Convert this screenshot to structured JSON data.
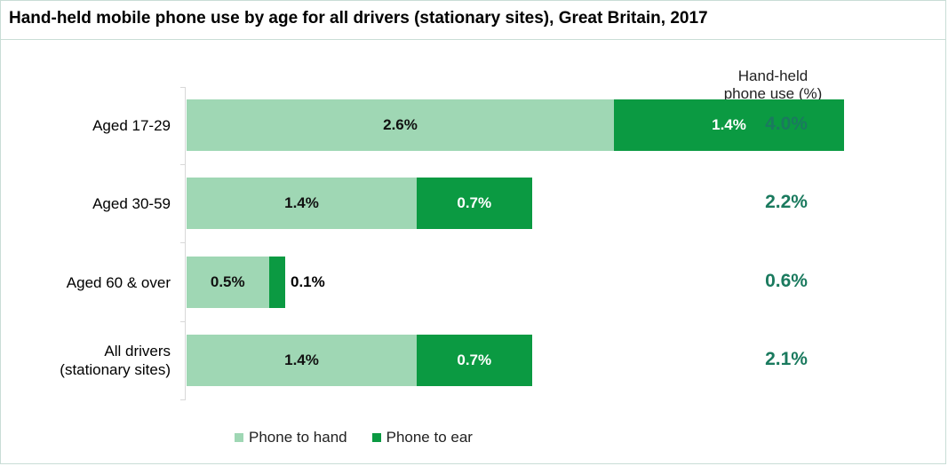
{
  "chart_data": {
    "type": "bar",
    "orientation": "horizontal",
    "stacked": true,
    "title": "Hand-held mobile phone use by age for all drivers (stationary sites), Great Britain, 2017",
    "categories": [
      "Aged 17-29",
      "Aged 30-59",
      "Aged 60 & over",
      "All drivers (stationary sites)"
    ],
    "category_lines": [
      [
        "Aged 17-29"
      ],
      [
        "Aged 30-59"
      ],
      [
        "Aged 60 & over"
      ],
      [
        "All drivers",
        "(stationary sites)"
      ]
    ],
    "series": [
      {
        "name": "Phone to hand",
        "values": [
          2.6,
          1.4,
          0.5,
          1.4
        ],
        "labels": [
          "2.6%",
          "1.4%",
          "0.5%",
          "1.4%"
        ],
        "color": "#9fd7b4"
      },
      {
        "name": "Phone to ear",
        "values": [
          1.4,
          0.7,
          0.1,
          0.7
        ],
        "labels": [
          "1.4%",
          "0.7%",
          "0.1%",
          "0.7%"
        ],
        "color": "#0b9a42"
      }
    ],
    "totals_header": [
      "Hand-held",
      "phone use (%)"
    ],
    "totals": [
      "4.0%",
      "2.2%",
      "0.6%",
      "2.1%"
    ],
    "totals_color": "#1a7a5e",
    "legend_position": "bottom",
    "grid": false
  }
}
